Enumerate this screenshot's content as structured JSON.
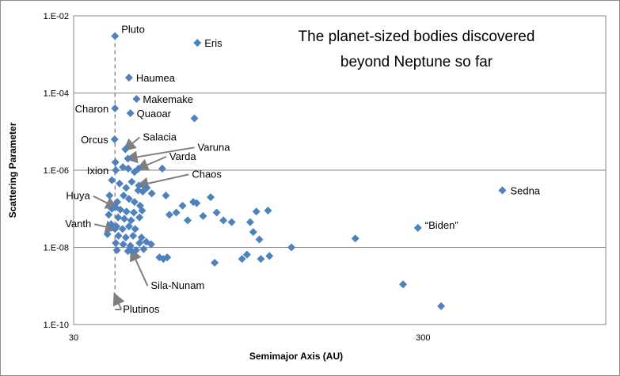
{
  "chart_data": {
    "type": "scatter",
    "title_lines": [
      "The planet-sized bodies discovered",
      "beyond Neptune so far"
    ],
    "xlabel": "Semimajor Axis (AU)",
    "ylabel": "Scattering Parameter",
    "x_scale": "log",
    "y_scale": "log",
    "xlim": [
      30,
      1000
    ],
    "ylim": [
      1e-10,
      0.01
    ],
    "x_ticks": [
      {
        "value": 30,
        "label": "30"
      },
      {
        "value": 300,
        "label": "300"
      }
    ],
    "y_ticks": [
      {
        "value": 0.01,
        "label": "1.E-02"
      },
      {
        "value": 0.0001,
        "label": "1.E-04"
      },
      {
        "value": 1e-06,
        "label": "1.E-06"
      },
      {
        "value": 1e-08,
        "label": "1.E-08"
      },
      {
        "value": 1e-10,
        "label": "1.E-10"
      }
    ],
    "grid": "horizontal",
    "legend": "none",
    "marker_color": "#4f81bd",
    "plutinos_line": {
      "x": 39.4,
      "label": "Plutinos"
    },
    "labeled_points": [
      {
        "name": "Pluto",
        "x": 39.4,
        "y": 0.003
      },
      {
        "name": "Eris",
        "x": 67.8,
        "y": 0.002
      },
      {
        "name": "Haumea",
        "x": 43.2,
        "y": 0.00025
      },
      {
        "name": "Makemake",
        "x": 45.4,
        "y": 7e-05
      },
      {
        "name": "Charon",
        "x": 39.4,
        "y": 4e-05
      },
      {
        "name": "Quaoar",
        "x": 43.6,
        "y": 3e-05
      },
      {
        "name": "Orcus",
        "x": 39.3,
        "y": 6.3e-06
      },
      {
        "name": "Salacia",
        "x": 42.2,
        "y": 3.5e-06
      },
      {
        "name": "Varuna",
        "x": 42.9,
        "y": 2e-06
      },
      {
        "name": "Varda",
        "x": 46.0,
        "y": 1.1e-06
      },
      {
        "name": "Ixion",
        "x": 39.6,
        "y": 1e-06
      },
      {
        "name": "Chaos",
        "x": 46.1,
        "y": 4e-07
      },
      {
        "name": "Huya",
        "x": 39.5,
        "y": 1.1e-07
      },
      {
        "name": "Vanth",
        "x": 39.4,
        "y": 3e-08
      },
      {
        "name": "Sila-Nunam",
        "x": 44.0,
        "y": 8e-09
      },
      {
        "name": "Sedna",
        "x": 506,
        "y": 3e-07
      },
      {
        "name": "“Biden”",
        "x": 290,
        "y": 3.2e-08
      }
    ],
    "other_points": [
      {
        "x": 39.5,
        "y": 1.6e-06
      },
      {
        "x": 41.5,
        "y": 1.2e-06
      },
      {
        "x": 43.0,
        "y": 1.1e-06
      },
      {
        "x": 44.8,
        "y": 9e-07
      },
      {
        "x": 53.8,
        "y": 1.1e-06
      },
      {
        "x": 66.5,
        "y": 2.2e-05
      },
      {
        "x": 38.6,
        "y": 5.5e-07
      },
      {
        "x": 40.6,
        "y": 4.5e-07
      },
      {
        "x": 42.4,
        "y": 3.5e-07
      },
      {
        "x": 44.0,
        "y": 5e-07
      },
      {
        "x": 45.9,
        "y": 3e-07
      },
      {
        "x": 47.3,
        "y": 2.8e-07
      },
      {
        "x": 48.6,
        "y": 3.5e-07
      },
      {
        "x": 50.2,
        "y": 2.5e-07
      },
      {
        "x": 38.0,
        "y": 2.2e-07
      },
      {
        "x": 40.0,
        "y": 1.5e-07
      },
      {
        "x": 41.7,
        "y": 2.2e-07
      },
      {
        "x": 43.2,
        "y": 1.8e-07
      },
      {
        "x": 44.8,
        "y": 1.5e-07
      },
      {
        "x": 46.5,
        "y": 1.2e-07
      },
      {
        "x": 38.6,
        "y": 1e-07
      },
      {
        "x": 40.8,
        "y": 9.5e-08
      },
      {
        "x": 42.5,
        "y": 8.5e-08
      },
      {
        "x": 44.6,
        "y": 8e-08
      },
      {
        "x": 47.1,
        "y": 9e-08
      },
      {
        "x": 37.8,
        "y": 7e-08
      },
      {
        "x": 40.2,
        "y": 6e-08
      },
      {
        "x": 41.9,
        "y": 5.5e-08
      },
      {
        "x": 43.8,
        "y": 5e-08
      },
      {
        "x": 46.3,
        "y": 6e-08
      },
      {
        "x": 38.4,
        "y": 4e-08
      },
      {
        "x": 39.8,
        "y": 3.5e-08
      },
      {
        "x": 41.4,
        "y": 3e-08
      },
      {
        "x": 43.2,
        "y": 3.5e-08
      },
      {
        "x": 45.0,
        "y": 3e-08
      },
      {
        "x": 37.5,
        "y": 2.2e-08
      },
      {
        "x": 40.3,
        "y": 2e-08
      },
      {
        "x": 42.3,
        "y": 1.8e-08
      },
      {
        "x": 44.4,
        "y": 2e-08
      },
      {
        "x": 46.9,
        "y": 1.8e-08
      },
      {
        "x": 39.6,
        "y": 1.3e-08
      },
      {
        "x": 41.6,
        "y": 1.2e-08
      },
      {
        "x": 43.6,
        "y": 1.1e-08
      },
      {
        "x": 46.3,
        "y": 1.3e-08
      },
      {
        "x": 48.4,
        "y": 1.4e-08
      },
      {
        "x": 50.0,
        "y": 1.2e-08
      },
      {
        "x": 39.9,
        "y": 8.5e-09
      },
      {
        "x": 42.9,
        "y": 8e-09
      },
      {
        "x": 45.3,
        "y": 8.5e-09
      },
      {
        "x": 47.6,
        "y": 9e-09
      },
      {
        "x": 52.8,
        "y": 5.5e-09
      },
      {
        "x": 54.2,
        "y": 5e-09
      },
      {
        "x": 55.6,
        "y": 5.5e-09
      },
      {
        "x": 55.1,
        "y": 2.2e-07
      },
      {
        "x": 56.4,
        "y": 7e-08
      },
      {
        "x": 59.0,
        "y": 8e-08
      },
      {
        "x": 61.5,
        "y": 1.2e-07
      },
      {
        "x": 63.6,
        "y": 5e-08
      },
      {
        "x": 66.0,
        "y": 1.5e-07
      },
      {
        "x": 67.5,
        "y": 1.4e-07
      },
      {
        "x": 70.4,
        "y": 6.5e-08
      },
      {
        "x": 74.0,
        "y": 2e-07
      },
      {
        "x": 77.0,
        "y": 8e-08
      },
      {
        "x": 80.5,
        "y": 5e-08
      },
      {
        "x": 85.0,
        "y": 4.5e-08
      },
      {
        "x": 96.0,
        "y": 4.5e-08
      },
      {
        "x": 100.0,
        "y": 8.5e-08
      },
      {
        "x": 108.0,
        "y": 9e-08
      },
      {
        "x": 98.0,
        "y": 2.5e-08
      },
      {
        "x": 102.0,
        "y": 1.6e-08
      },
      {
        "x": 76.0,
        "y": 4e-09
      },
      {
        "x": 91.0,
        "y": 5e-09
      },
      {
        "x": 94.0,
        "y": 6.5e-09
      },
      {
        "x": 103.0,
        "y": 5e-09
      },
      {
        "x": 109.0,
        "y": 6e-09
      },
      {
        "x": 126.0,
        "y": 1e-08
      },
      {
        "x": 192.0,
        "y": 1.7e-08
      },
      {
        "x": 263.0,
        "y": 1.1e-09
      },
      {
        "x": 338.0,
        "y": 3e-10
      }
    ]
  }
}
